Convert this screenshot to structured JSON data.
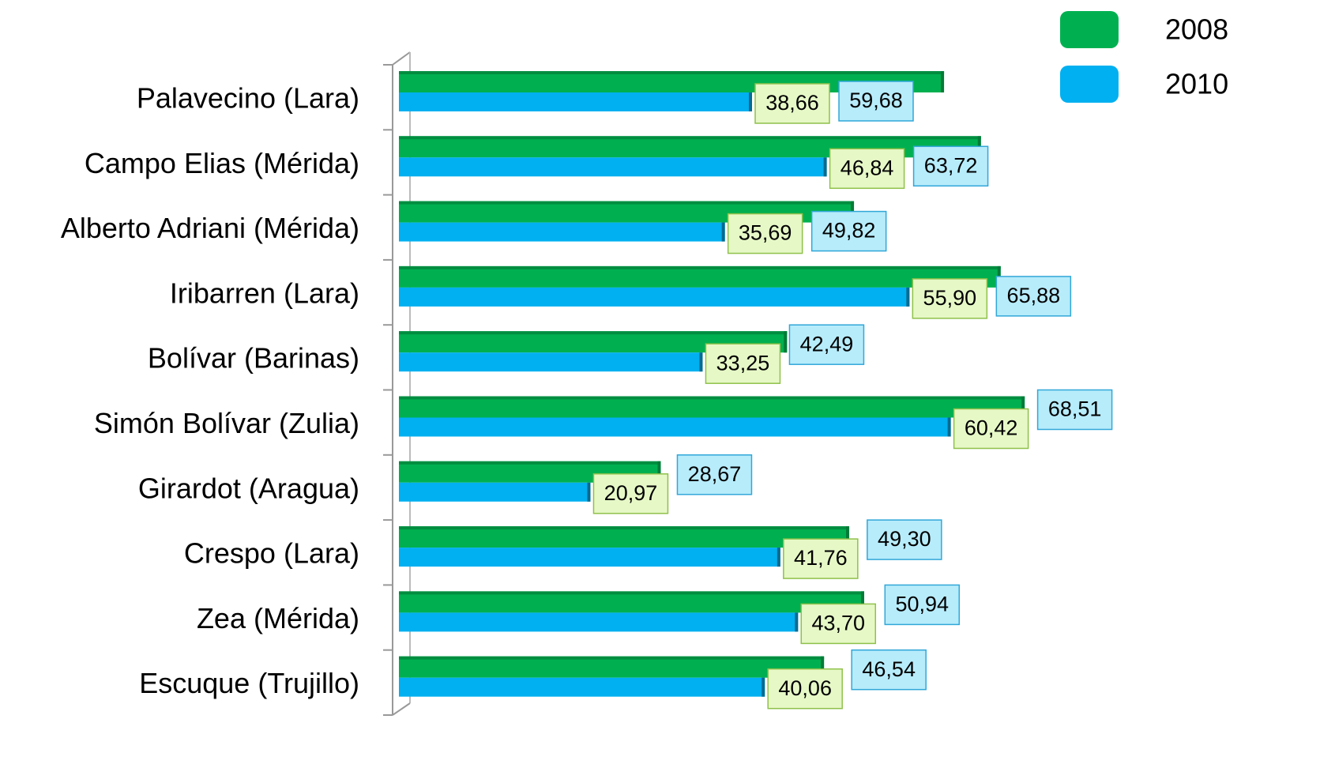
{
  "chart_data": {
    "type": "hbar",
    "categories": [
      "Palavecino (Lara)",
      "Campo Elias (Mérida)",
      "Alberto Adriani (Mérida)",
      "Iribarren (Lara)",
      "Bolívar (Barinas)",
      "Simón Bolívar (Zulia)",
      "Girardot (Aragua)",
      "Crespo (Lara)",
      "Zea (Mérida)",
      "Escuque (Trujillo)"
    ],
    "series": [
      {
        "name": "2008",
        "color": "#00b050",
        "label_color": "#b7ecfb",
        "label_border": "#31a7d8",
        "values": [
          59.68,
          63.72,
          49.82,
          65.88,
          42.49,
          68.51,
          28.67,
          49.3,
          50.94,
          46.54
        ],
        "value_labels": [
          "59,68",
          "63,72",
          "49,82",
          "65,88",
          "42,49",
          "68,51",
          "28,67",
          "49,30",
          "50,94",
          "46,54"
        ]
      },
      {
        "name": "2010",
        "color": "#00b0f0",
        "label_color": "#e6f8c6",
        "label_border": "#8fc14a",
        "values": [
          38.66,
          46.84,
          35.69,
          55.9,
          33.25,
          60.42,
          20.97,
          41.76,
          43.7,
          40.06
        ],
        "value_labels": [
          "38,66",
          "46,84",
          "35,69",
          "55,90",
          "33,25",
          "60,42",
          "20,97",
          "41,76",
          "43,70",
          "40,06"
        ]
      }
    ],
    "xlim": [
      0,
      80
    ],
    "legend": "top-right"
  }
}
